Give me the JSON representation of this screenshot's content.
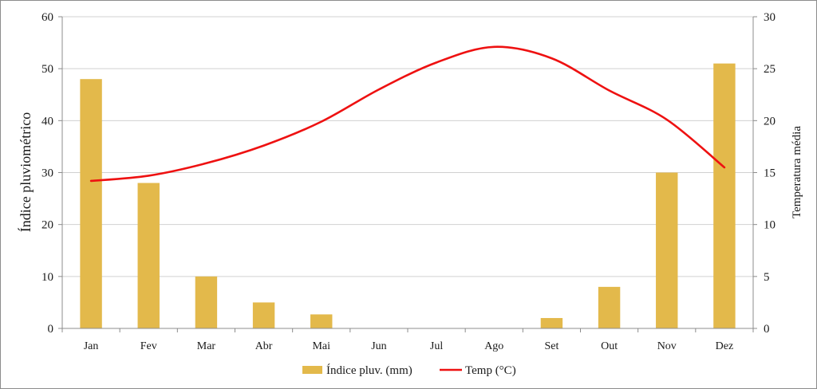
{
  "chart_data": {
    "type": "bar",
    "categories": [
      "Jan",
      "Fev",
      "Mar",
      "Abr",
      "Mai",
      "Jun",
      "Jul",
      "Ago",
      "Set",
      "Out",
      "Nov",
      "Dez"
    ],
    "series": [
      {
        "name": "Índice pluv. (mm)",
        "type": "bar",
        "axis": "left",
        "color": "#e3b94b",
        "values": [
          48,
          28,
          10,
          5,
          2.7,
          0,
          0,
          0,
          2,
          8,
          30,
          51
        ]
      },
      {
        "name": "Temp (°C)",
        "type": "line",
        "axis": "right",
        "color": "#ee1111",
        "values": [
          14.2,
          14.7,
          15.9,
          17.6,
          19.9,
          23.0,
          25.6,
          27.1,
          26.0,
          22.9,
          20.1,
          15.5
        ]
      }
    ],
    "ylabel": "Índice pluviométrico",
    "y2label": "Temperatura média",
    "ylim": [
      0,
      60
    ],
    "y2lim": [
      0,
      30
    ],
    "yticks": [
      0,
      10,
      20,
      30,
      40,
      50,
      60
    ],
    "y2ticks": [
      0,
      5,
      10,
      15,
      20,
      25,
      30
    ],
    "grid": true,
    "legend": "bottom-center"
  }
}
